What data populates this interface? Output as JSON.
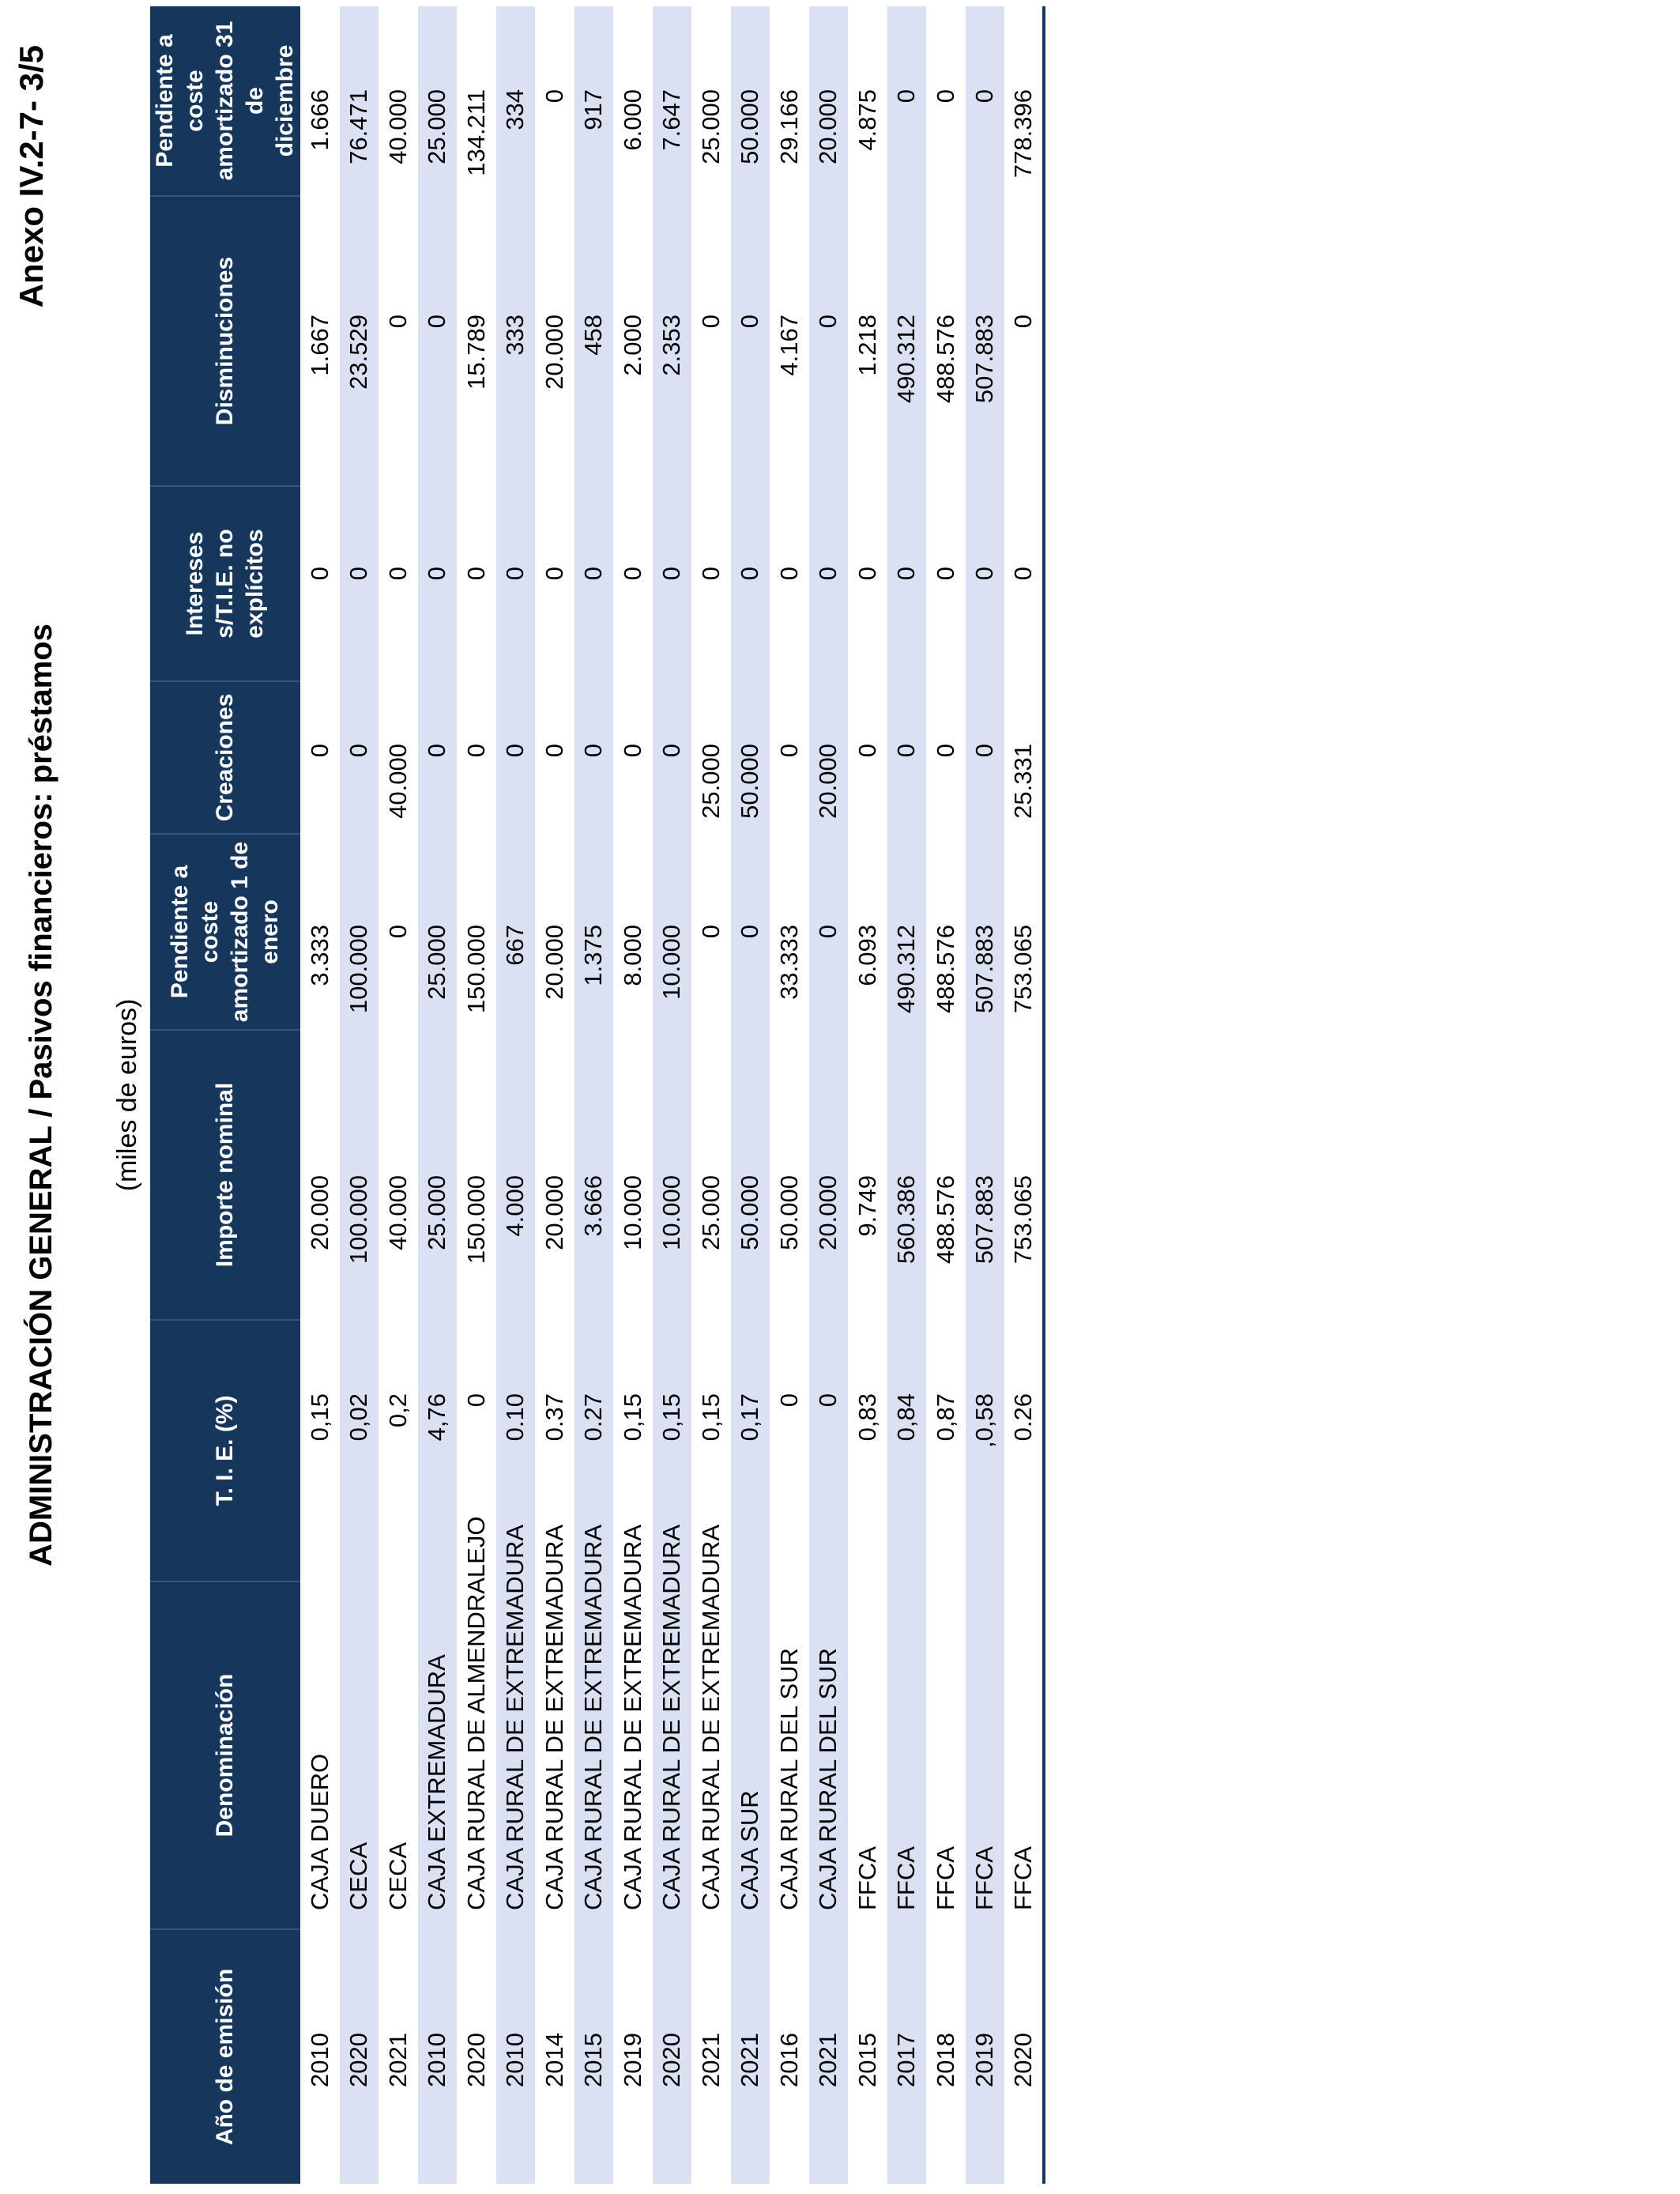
{
  "page": {
    "annex_label": "Anexo IV.2-7- 3/5",
    "title": "ADMINISTRACIÓN GENERAL  /  Pasivos financieros: préstamos",
    "unit_note": "(miles de euros)"
  },
  "colors": {
    "header_bg": "#16365C",
    "row_stripe": "#D9E1F2",
    "bottom_border": "#17375E",
    "header_text": "#FFFFFF",
    "body_text": "#000000"
  },
  "table": {
    "column_headers": [
      "Año de emisión",
      "Denominación",
      "T. I. E. (%)",
      "Importe nominal",
      "Pendiente a coste\namortizado 1 de\nenero",
      "Creaciones",
      "Intereses\ns/T.I.E. no\nexplícitos",
      "Disminuciones",
      "Pendiente a coste\namortizado 31 de\ndiciembre"
    ],
    "rows": [
      [
        "2010",
        "CAJA DUERO",
        "0,15",
        "20.000",
        "3.333",
        "0",
        "0",
        "1.667",
        "1.666"
      ],
      [
        "2020",
        "CECA",
        "0,02",
        "100.000",
        "100.000",
        "0",
        "0",
        "23.529",
        "76.471"
      ],
      [
        "2021",
        "CECA",
        "0,2",
        "40.000",
        "0",
        "40.000",
        "0",
        "0",
        "40.000"
      ],
      [
        "2010",
        "CAJA EXTREMADURA",
        "4,76",
        "25.000",
        "25.000",
        "0",
        "0",
        "0",
        "25.000"
      ],
      [
        "2020",
        "CAJA RURAL DE ALMENDRALEJO",
        "0",
        "150.000",
        "150.000",
        "0",
        "0",
        "15.789",
        "134.211"
      ],
      [
        "2010",
        "CAJA RURAL DE EXTREMADURA",
        "0.10",
        "4.000",
        "667",
        "0",
        "0",
        "333",
        "334"
      ],
      [
        "2014",
        "CAJA RURAL DE EXTREMADURA",
        "0.37",
        "20.000",
        "20.000",
        "0",
        "0",
        "20.000",
        "0"
      ],
      [
        "2015",
        "CAJA RURAL DE EXTREMADURA",
        "0.27",
        "3.666",
        "1.375",
        "0",
        "0",
        "458",
        "917"
      ],
      [
        "2019",
        "CAJA RURAL DE EXTREMADURA",
        "0,15",
        "10.000",
        "8.000",
        "0",
        "0",
        "2.000",
        "6.000"
      ],
      [
        "2020",
        "CAJA RURAL DE EXTREMADURA",
        "0,15",
        "10.000",
        "10.000",
        "0",
        "0",
        "2.353",
        "7.647"
      ],
      [
        "2021",
        "CAJA RURAL DE EXTREMADURA",
        "0,15",
        "25.000",
        "0",
        "25.000",
        "0",
        "0",
        "25.000"
      ],
      [
        "2021",
        "CAJA SUR",
        "0,17",
        "50.000",
        "0",
        "50.000",
        "0",
        "0",
        "50.000"
      ],
      [
        "2016",
        "CAJA RURAL DEL SUR",
        "0",
        "50.000",
        "33.333",
        "0",
        "0",
        "4.167",
        "29.166"
      ],
      [
        "2021",
        "CAJA RURAL DEL SUR",
        "0",
        "20.000",
        "0",
        "20.000",
        "0",
        "0",
        "20.000"
      ],
      [
        "2015",
        "FFCA",
        "0,83",
        "9.749",
        "6.093",
        "0",
        "0",
        "1.218",
        "4.875"
      ],
      [
        "2017",
        "FFCA",
        "0,84",
        "560.386",
        "490.312",
        "0",
        "0",
        "490.312",
        "0"
      ],
      [
        "2018",
        "FFCA",
        "0,87",
        "488.576",
        "488.576",
        "0",
        "0",
        "488.576",
        "0"
      ],
      [
        "2019",
        "FFCA",
        ",0,58",
        "507.883",
        "507.883",
        "0",
        "0",
        "507.883",
        "0"
      ],
      [
        "2020",
        "FFCA",
        "0.26",
        "753.065",
        "753.065",
        "25.331",
        "0",
        "0",
        "778.396"
      ]
    ]
  }
}
